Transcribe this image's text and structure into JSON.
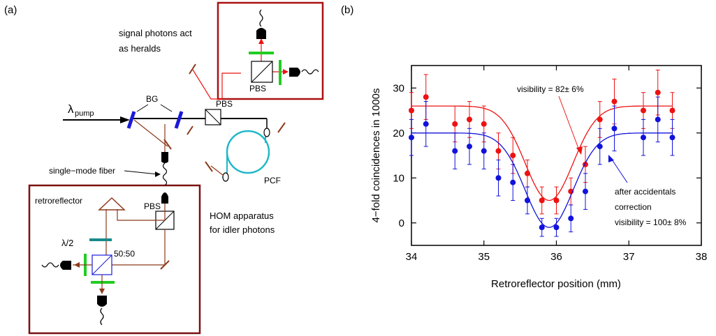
{
  "panel_a": {
    "label": "(a)",
    "pump_lambda": "λ",
    "pump_sub": "pump",
    "bg": "BG",
    "pbs_top": "PBS",
    "pbs_mid": "PBS",
    "pbs_low": "PBS",
    "pcf": "PCF",
    "signal_line1": "signal photons act",
    "signal_line2": "as heralds",
    "fiber": "single−mode fiber",
    "retroreflector": "retroreflector",
    "hom_line1": "HOM apparatus",
    "hom_line2": "for idler photons",
    "lambda2": "λ/2",
    "bs5050": "50:50"
  },
  "panel_b": {
    "label": "(b)",
    "annot_red": "visibility = 82± 6%",
    "annot_blue1": "after accidentals",
    "annot_blue2": "correction",
    "annot_blue3": "visibility = 100± 8%"
  },
  "colors": {
    "red": "#ee1111",
    "blue": "#1111dd",
    "brown": "#8b3a1a",
    "green": "#22cc22",
    "cyan": "#22b8c8",
    "teal": "#1a8a8a",
    "frame": "#aa1111"
  },
  "chart_data": {
    "type": "scatter",
    "title": "",
    "xlabel": "Retroreflector position (mm)",
    "ylabel": "4−fold coincidences in 1000s",
    "xlim": [
      34,
      38
    ],
    "ylim": [
      -5,
      35
    ],
    "xticks": [
      "34",
      "35",
      "36",
      "37",
      "38"
    ],
    "yticks": [
      "0",
      "10",
      "20",
      "30"
    ],
    "grid": false,
    "series": [
      {
        "color": "#ee1111",
        "x": [
          34.0,
          34.2,
          34.6,
          34.8,
          35.0,
          35.2,
          35.4,
          35.6,
          35.8,
          36.0,
          36.2,
          36.4,
          36.6,
          36.8,
          37.2,
          37.4,
          37.6
        ],
        "y": [
          25,
          28,
          22,
          23,
          22,
          16,
          15,
          11,
          5,
          5,
          7,
          13,
          23,
          27,
          25,
          29,
          25
        ],
        "err": [
          4,
          5,
          4,
          4,
          4,
          4,
          4,
          3,
          3,
          3,
          3,
          4,
          4,
          5,
          4,
          5,
          4
        ],
        "fit": {
          "base": 26,
          "depth": 21,
          "center": 35.9,
          "sigma": 0.33
        }
      },
      {
        "color": "#1111dd",
        "x": [
          34.0,
          34.2,
          34.6,
          34.8,
          35.0,
          35.2,
          35.4,
          35.6,
          35.8,
          36.0,
          36.2,
          36.4,
          36.6,
          36.8,
          37.2,
          37.4,
          37.6
        ],
        "y": [
          19,
          22,
          16,
          17,
          16,
          10,
          9,
          5,
          -1,
          -1,
          1,
          7,
          17,
          21,
          19,
          23,
          19
        ],
        "err": [
          4,
          5,
          4,
          4,
          4,
          4,
          4,
          3,
          2,
          2,
          3,
          4,
          4,
          5,
          4,
          5,
          4
        ],
        "fit": {
          "base": 20,
          "depth": 21,
          "center": 35.9,
          "sigma": 0.33
        }
      }
    ]
  }
}
